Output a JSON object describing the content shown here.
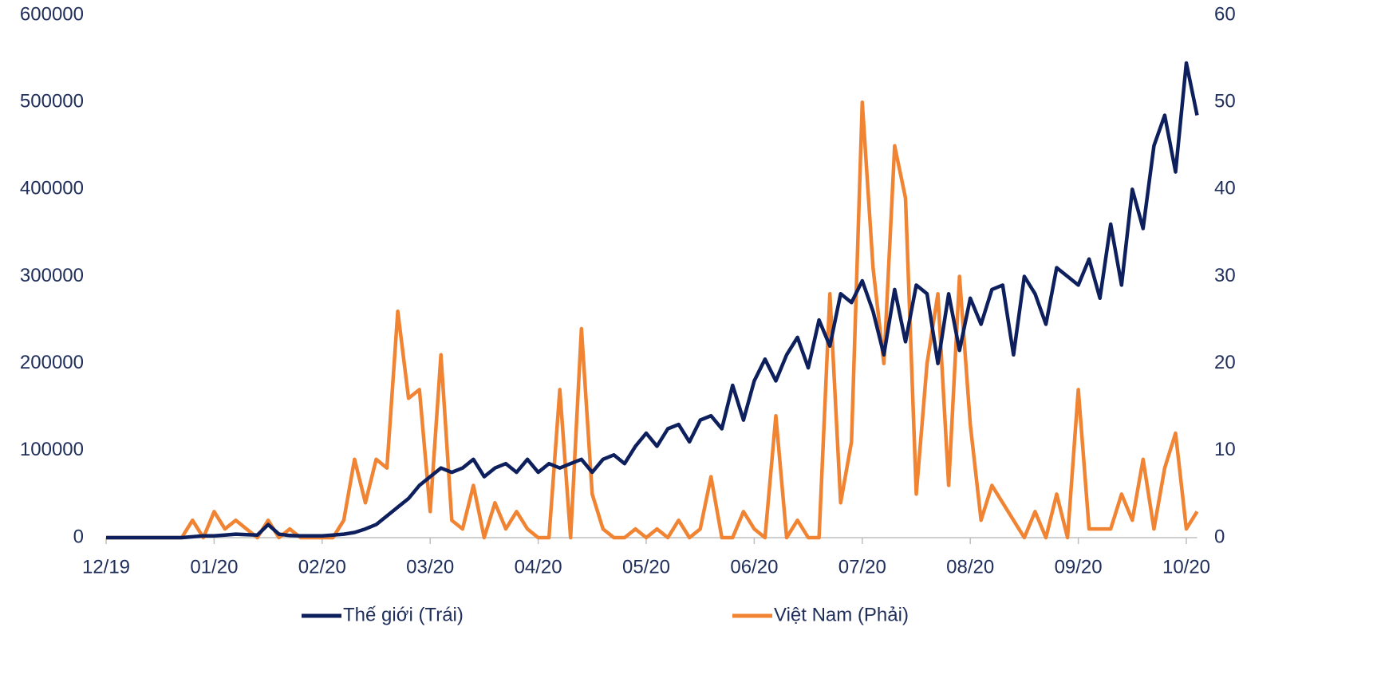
{
  "chart_data": {
    "type": "line",
    "categories": [
      "12/19",
      null,
      null,
      null,
      null,
      null,
      null,
      null,
      null,
      null,
      "01/20",
      null,
      null,
      null,
      null,
      null,
      null,
      null,
      null,
      null,
      "02/20",
      null,
      null,
      null,
      null,
      null,
      null,
      null,
      null,
      null,
      "03/20",
      null,
      null,
      null,
      null,
      null,
      null,
      null,
      null,
      null,
      "04/20",
      null,
      null,
      null,
      null,
      null,
      null,
      null,
      null,
      null,
      "05/20",
      null,
      null,
      null,
      null,
      null,
      null,
      null,
      null,
      null,
      "06/20",
      null,
      null,
      null,
      null,
      null,
      null,
      null,
      null,
      null,
      "07/20",
      null,
      null,
      null,
      null,
      null,
      null,
      null,
      null,
      null,
      "08/20",
      null,
      null,
      null,
      null,
      null,
      null,
      null,
      null,
      null,
      "09/20",
      null,
      null,
      null,
      null,
      null,
      null,
      null,
      null,
      null,
      "10/20",
      null
    ],
    "series": [
      {
        "name": "Thế giới (Trái)",
        "color": "#0d1f5c",
        "axis": "y",
        "values": [
          0,
          0,
          0,
          0,
          0,
          0,
          0,
          0,
          1000,
          2000,
          2000,
          3000,
          4000,
          3500,
          3000,
          15000,
          4000,
          2500,
          2000,
          2000,
          2000,
          3000,
          4000,
          6000,
          10000,
          15000,
          25000,
          35000,
          45000,
          60000,
          70000,
          80000,
          75000,
          80000,
          90000,
          70000,
          80000,
          85000,
          75000,
          90000,
          75000,
          85000,
          80000,
          85000,
          90000,
          75000,
          90000,
          95000,
          85000,
          105000,
          120000,
          105000,
          125000,
          130000,
          110000,
          135000,
          140000,
          125000,
          175000,
          135000,
          180000,
          205000,
          180000,
          210000,
          230000,
          195000,
          250000,
          220000,
          280000,
          270000,
          295000,
          260000,
          210000,
          285000,
          225000,
          290000,
          280000,
          200000,
          280000,
          215000,
          275000,
          245000,
          285000,
          290000,
          210000,
          300000,
          280000,
          245000,
          310000,
          300000,
          290000,
          320000,
          275000,
          360000,
          290000,
          400000,
          355000,
          450000,
          485000,
          420000,
          545000,
          485000
        ]
      },
      {
        "name": "Việt Nam (Phải)",
        "color": "#f08433",
        "axis": "y2",
        "values": [
          0,
          0,
          0,
          0,
          0,
          0,
          0,
          0,
          2,
          0,
          3,
          1,
          2,
          1,
          0,
          2,
          0,
          1,
          0,
          0,
          0,
          0,
          2,
          9,
          4,
          9,
          8,
          26,
          16,
          17,
          3,
          21,
          2,
          1,
          6,
          0,
          4,
          1,
          3,
          1,
          0,
          0,
          17,
          0,
          24,
          5,
          1,
          0,
          0,
          1,
          0,
          1,
          0,
          2,
          0,
          1,
          7,
          0,
          0,
          3,
          1,
          0,
          14,
          0,
          2,
          0,
          0,
          28,
          4,
          11,
          50,
          31,
          20,
          45,
          39,
          5,
          20,
          28,
          6,
          30,
          13,
          2,
          6,
          4,
          2,
          0,
          3,
          0,
          5,
          0,
          17,
          1,
          1,
          1,
          5,
          2,
          9,
          1,
          8,
          12,
          1,
          3
        ]
      }
    ],
    "ylim": [
      0,
      600000
    ],
    "yticks": [
      0,
      100000,
      200000,
      300000,
      400000,
      500000,
      600000
    ],
    "y2lim": [
      0,
      60
    ],
    "y2ticks": [
      0,
      10,
      20,
      30,
      40,
      50,
      60
    ],
    "grid": false,
    "legend": "bottom"
  }
}
